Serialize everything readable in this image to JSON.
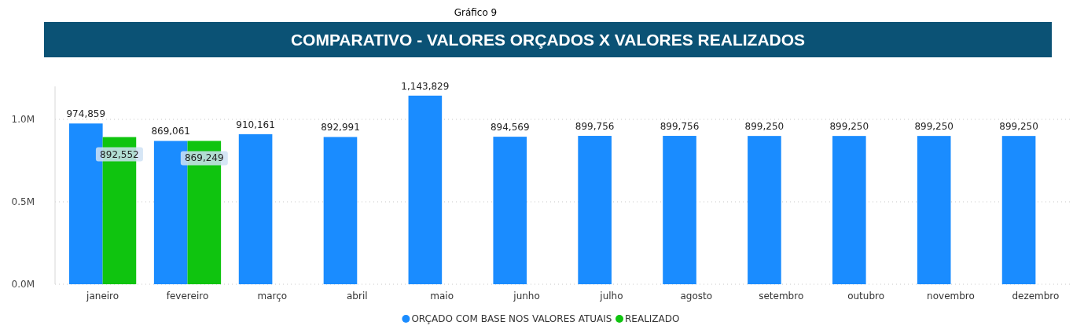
{
  "chart_data": {
    "type": "bar",
    "title": "COMPARATIVO - VALORES ORÇADOS X VALORES  REALIZADOS",
    "annotations": [
      "Gráfico 9"
    ],
    "categories": [
      "janeiro",
      "fevereiro",
      "março",
      "abril",
      "maio",
      "junho",
      "julho",
      "agosto",
      "setembro",
      "outubro",
      "novembro",
      "dezembro"
    ],
    "series": [
      {
        "name": "ORÇADO COM BASE NOS VALORES ATUAIS",
        "color": "#1a8cff",
        "values": [
          974859,
          869061,
          910161,
          892991,
          1143829,
          894569,
          899756,
          899756,
          899250,
          899250,
          899250,
          899250
        ],
        "value_labels": [
          "974,859",
          "869,061",
          "910,161",
          "892,991",
          "1,143,829",
          "894,569",
          "899,756",
          "899,756",
          "899,250",
          "899,250",
          "899,250",
          "899,250"
        ]
      },
      {
        "name": "REALIZADO",
        "color": "#0fc40f",
        "values": [
          892552,
          869249,
          null,
          null,
          null,
          null,
          null,
          null,
          null,
          null,
          null,
          null
        ],
        "value_labels": [
          "892,552",
          "869,249",
          null,
          null,
          null,
          null,
          null,
          null,
          null,
          null,
          null,
          null
        ]
      }
    ],
    "ylim": [
      0,
      1200000
    ],
    "yticks": [
      {
        "value": 0,
        "label": "0.0M"
      },
      {
        "value": 500000,
        "label": "0.5M"
      },
      {
        "value": 1000000,
        "label": "1.0M"
      }
    ],
    "grid": "y",
    "legend": "bottom"
  }
}
